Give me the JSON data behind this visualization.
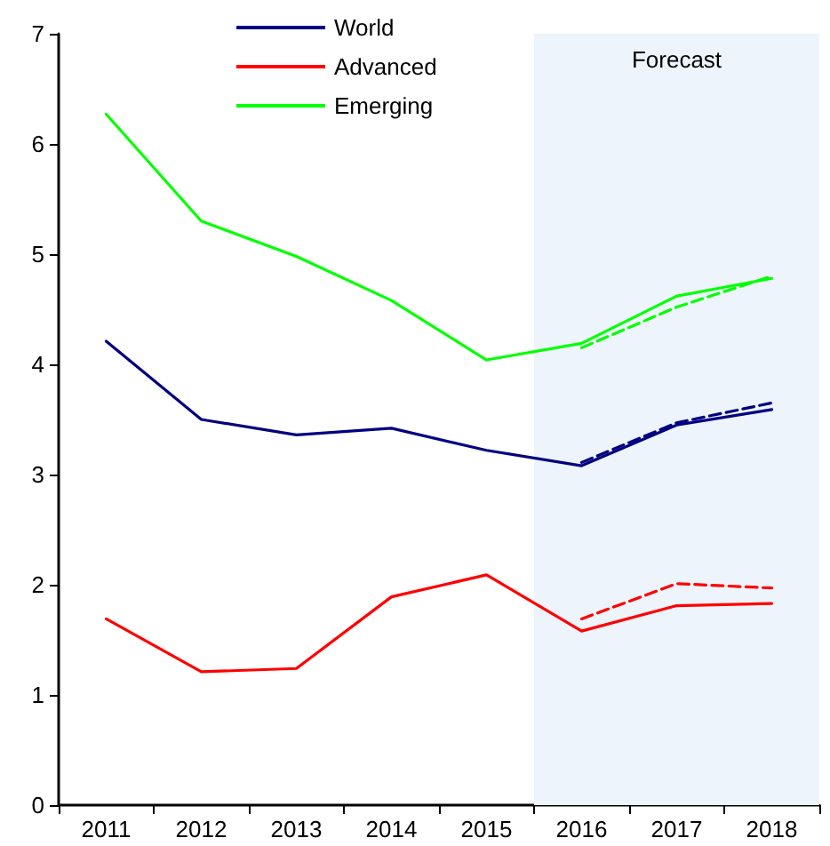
{
  "chart_data": {
    "type": "line",
    "categories": [
      "2011",
      "2012",
      "2013",
      "2014",
      "2015",
      "2016",
      "2017",
      "2018"
    ],
    "series": [
      {
        "name": "World",
        "color": "#000080",
        "values": [
          4.21,
          3.5,
          3.36,
          3.42,
          3.22,
          3.08,
          3.45,
          3.59
        ]
      },
      {
        "name": "Advanced",
        "color": "#ff0000",
        "values": [
          1.69,
          1.21,
          1.24,
          1.89,
          2.09,
          1.58,
          1.81,
          1.83
        ]
      },
      {
        "name": "Emerging",
        "color": "#00ff00",
        "values": [
          6.27,
          5.3,
          4.98,
          4.58,
          4.04,
          4.19,
          4.62,
          4.78
        ]
      },
      {
        "color": "#000080",
        "line_style": "dashed",
        "values": [
          null,
          null,
          null,
          null,
          null,
          3.11,
          3.47,
          3.65
        ]
      },
      {
        "color": "#ff0000",
        "line_style": "dashed",
        "values": [
          null,
          null,
          null,
          null,
          null,
          1.69,
          2.01,
          1.97
        ]
      },
      {
        "color": "#00ff00",
        "line_style": "dashed",
        "values": [
          null,
          null,
          null,
          null,
          null,
          4.15,
          4.52,
          4.8
        ]
      }
    ],
    "ylim": [
      0,
      7
    ],
    "yticks": [
      0,
      1,
      2,
      3,
      4,
      5,
      6,
      7
    ],
    "bands": [
      {
        "axis": "x",
        "from": "2016",
        "to": "2018",
        "label": "Forecast",
        "color": "#edf4fb"
      }
    ],
    "grid": false,
    "legend": "top",
    "marker": "none",
    "line_style": "solid"
  }
}
